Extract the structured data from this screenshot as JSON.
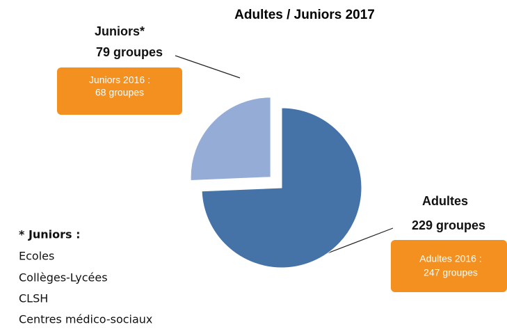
{
  "chart_data": {
    "type": "pie",
    "title": "Adultes / Juniors 2017",
    "categories": [
      "Juniors*",
      "Adultes"
    ],
    "values": [
      79,
      229
    ],
    "value_labels": [
      "79 groupes",
      "229 groupes"
    ],
    "colors": [
      "#95add6",
      "#4572a7"
    ],
    "annotations": [
      [
        "Juniors 2016 :",
        "68 groupes"
      ],
      [
        "Adultes 2016 :",
        "247 groupes"
      ]
    ],
    "footnote": {
      "title": "* Juniors :",
      "items": [
        "Ecoles",
        "Collèges-Lycées",
        "CLSH",
        "Centres médico-sociaux"
      ]
    }
  }
}
